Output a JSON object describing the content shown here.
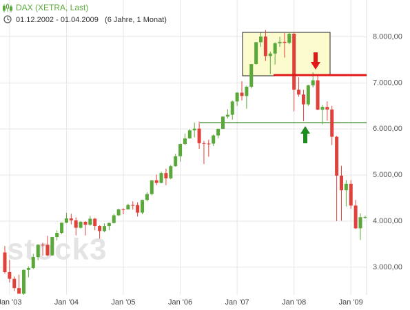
{
  "chart_data": {
    "type": "candlestick",
    "title": "DAX (XETRA, Last)",
    "subtitle": "01.12.2002 - 01.04.2009   (6 Jahre, 1 Monat)",
    "watermark": "stock3",
    "up_color": "#5aa83a",
    "down_color": "#e0413a",
    "grid": true,
    "x": [
      "2002-12",
      "2003-01",
      "2003-02",
      "2003-03",
      "2003-04",
      "2003-05",
      "2003-06",
      "2003-07",
      "2003-08",
      "2003-09",
      "2003-10",
      "2003-11",
      "2003-12",
      "2004-01",
      "2004-02",
      "2004-03",
      "2004-04",
      "2004-05",
      "2004-06",
      "2004-07",
      "2004-08",
      "2004-09",
      "2004-10",
      "2004-11",
      "2004-12",
      "2005-01",
      "2005-02",
      "2005-03",
      "2005-04",
      "2005-05",
      "2005-06",
      "2005-07",
      "2005-08",
      "2005-09",
      "2005-10",
      "2005-11",
      "2005-12",
      "2006-01",
      "2006-02",
      "2006-03",
      "2006-04",
      "2006-05",
      "2006-06",
      "2006-07",
      "2006-08",
      "2006-09",
      "2006-10",
      "2006-11",
      "2006-12",
      "2007-01",
      "2007-02",
      "2007-03",
      "2007-04",
      "2007-05",
      "2007-06",
      "2007-07",
      "2007-08",
      "2007-09",
      "2007-10",
      "2007-11",
      "2007-12",
      "2008-01",
      "2008-02",
      "2008-03",
      "2008-04",
      "2008-05",
      "2008-06",
      "2008-07",
      "2008-08",
      "2008-09",
      "2008-10",
      "2008-11",
      "2008-12",
      "2009-01",
      "2009-02",
      "2009-03",
      "2009-04"
    ],
    "open": [
      3320,
      2893,
      2748,
      2547,
      2424,
      2942,
      2982,
      3221,
      3487,
      3484,
      3257,
      3655,
      3745,
      3965,
      4059,
      4018,
      3856,
      3985,
      3921,
      4052,
      3895,
      3785,
      3893,
      3960,
      4126,
      4256,
      4254,
      4350,
      4349,
      4185,
      4460,
      4587,
      4887,
      4830,
      5044,
      4929,
      5193,
      5408,
      5674,
      5796,
      5970,
      6009,
      5692,
      5683,
      5682,
      5860,
      6004,
      6269,
      6309,
      6597,
      6789,
      6716,
      6917,
      7409,
      7883,
      8007,
      7584,
      7638,
      7862,
      7890,
      7870,
      8067,
      6852,
      6748,
      6535,
      6949,
      7057,
      6418,
      6479,
      6422,
      5831,
      4988,
      4670,
      4810,
      4338,
      3844,
      4085
    ],
    "high": [
      3460,
      3157,
      2800,
      2840,
      2950,
      3020,
      3290,
      3500,
      3530,
      3680,
      3660,
      3800,
      3970,
      4180,
      4160,
      4080,
      4000,
      4000,
      4110,
      4070,
      3910,
      3950,
      3970,
      4160,
      4270,
      4280,
      4380,
      4430,
      4410,
      4470,
      4630,
      4890,
      5010,
      5070,
      5140,
      5220,
      5460,
      5680,
      5900,
      6000,
      6140,
      6160,
      5740,
      5770,
      5880,
      6010,
      6270,
      6430,
      6620,
      6800,
      7040,
      6940,
      7410,
      7890,
      8090,
      8150,
      7680,
      7880,
      8000,
      8080,
      8100,
      8100,
      7120,
      6850,
      6960,
      7230,
      7150,
      6520,
      6600,
      6500,
      5850,
      5200,
      4890,
      4890,
      4460,
      4170,
      4120
    ],
    "low": [
      2860,
      2670,
      2480,
      2430,
      2400,
      2780,
      2960,
      3150,
      3250,
      3240,
      3250,
      3580,
      3720,
      3960,
      3930,
      3690,
      3840,
      3690,
      3900,
      3800,
      3620,
      3760,
      3800,
      3950,
      4110,
      4150,
      4250,
      4250,
      4100,
      4150,
      4430,
      4560,
      4780,
      4820,
      4780,
      4910,
      5180,
      5290,
      5650,
      5790,
      5820,
      5570,
      5240,
      5400,
      5630,
      5800,
      6000,
      6230,
      6200,
      6500,
      6620,
      6440,
      6880,
      7400,
      7780,
      7480,
      7190,
      7400,
      7780,
      7550,
      7840,
      6380,
      6700,
      6170,
      6500,
      6900,
      6410,
      6100,
      6180,
      5650,
      4000,
      4010,
      4320,
      4270,
      3830,
      3590,
      4050
    ],
    "close": [
      2893,
      2748,
      2547,
      2424,
      2942,
      2982,
      3221,
      3487,
      3484,
      3257,
      3655,
      3745,
      3965,
      4059,
      4018,
      3856,
      3985,
      3921,
      4052,
      3895,
      3785,
      3893,
      3960,
      4126,
      4256,
      4254,
      4350,
      4349,
      4185,
      4460,
      4587,
      4887,
      4830,
      5044,
      4929,
      5193,
      5408,
      5674,
      5796,
      5970,
      6009,
      5692,
      5683,
      5682,
      5860,
      6004,
      6269,
      6309,
      6597,
      6789,
      6716,
      6917,
      7409,
      7883,
      8007,
      7584,
      7638,
      7862,
      7890,
      7870,
      8067,
      6852,
      6748,
      6535,
      6949,
      7057,
      6418,
      6479,
      6422,
      5831,
      4988,
      4670,
      4810,
      4338,
      3844,
      4085,
      4090
    ],
    "ylim": [
      2400,
      8800
    ],
    "yticks": [
      {
        "value": 3000,
        "label": "3.000,00"
      },
      {
        "value": 4000,
        "label": "4.000,00"
      },
      {
        "value": 5000,
        "label": "5.000,00"
      },
      {
        "value": 6000,
        "label": "6.000,00"
      },
      {
        "value": 7000,
        "label": "7.000,00"
      },
      {
        "value": 8000,
        "label": "8.000,00"
      }
    ],
    "xticks": [
      {
        "value": "2003-01",
        "label": "Jan '03"
      },
      {
        "value": "2004-01",
        "label": "Jan '04"
      },
      {
        "value": "2005-01",
        "label": "Jan '05"
      },
      {
        "value": "2006-01",
        "label": "Jan '06"
      },
      {
        "value": "2007-01",
        "label": "Jan '07"
      },
      {
        "value": "2008-01",
        "label": "Jan '08"
      },
      {
        "value": "2009-01",
        "label": "Jan '09"
      }
    ]
  }
}
